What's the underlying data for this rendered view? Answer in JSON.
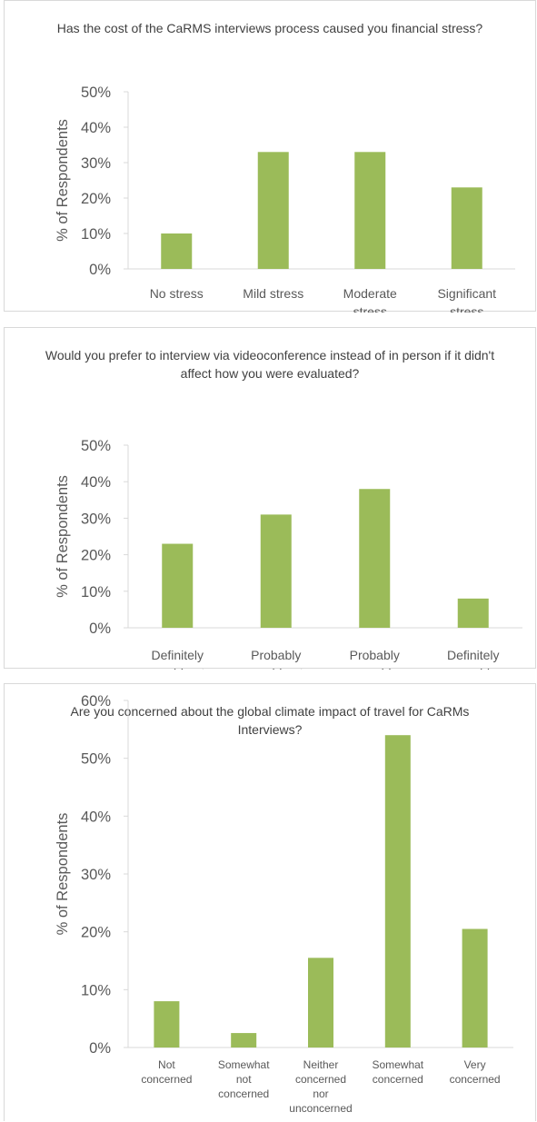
{
  "chart_data": [
    {
      "type": "bar",
      "title": "Has the cost of the CaRMS interviews process caused you financial stress?",
      "ylabel": "% of Respondents",
      "xlabel": "",
      "categories": [
        [
          "No stress"
        ],
        [
          "Mild stress"
        ],
        [
          "Moderate",
          "stress"
        ],
        [
          "Significant",
          "stress"
        ]
      ],
      "values": [
        10,
        33,
        33,
        23
      ],
      "ylim": [
        0,
        50
      ],
      "yticks": [
        0,
        10,
        20,
        30,
        40,
        50
      ],
      "grid": false,
      "bar_color": "#9bbb59"
    },
    {
      "type": "bar",
      "title": "Would you prefer to interview via videoconference instead of in person if it didn't affect how you were evaluated?",
      "ylabel": "% of Respondents",
      "xlabel": "",
      "categories": [
        [
          "Definitely",
          "would not"
        ],
        [
          "Probably",
          "would not"
        ],
        [
          "Probably",
          "would"
        ],
        [
          "Definitely",
          "would"
        ]
      ],
      "values": [
        23,
        31,
        38,
        8
      ],
      "ylim": [
        0,
        50
      ],
      "yticks": [
        0,
        10,
        20,
        30,
        40,
        50
      ],
      "grid": false,
      "bar_color": "#9bbb59"
    },
    {
      "type": "bar",
      "title": "Are you concerned about the global climate impact of travel for CaRMs Interviews?",
      "ylabel": "% of Respondents",
      "xlabel": "",
      "categories": [
        [
          "Not",
          "concerned"
        ],
        [
          "Somewhat",
          "not",
          "concerned"
        ],
        [
          "Neither",
          "concerned",
          "nor",
          "unconcerned"
        ],
        [
          "Somewhat",
          "concerned"
        ],
        [
          "Very",
          "concerned"
        ]
      ],
      "values": [
        8,
        2.5,
        15.5,
        54,
        20.5
      ],
      "ylim": [
        0,
        60
      ],
      "yticks": [
        0,
        10,
        20,
        30,
        40,
        50,
        60
      ],
      "grid": false,
      "bar_color": "#9bbb59"
    }
  ]
}
